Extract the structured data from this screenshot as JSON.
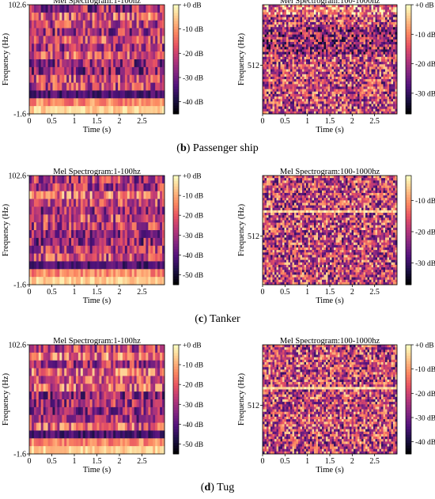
{
  "colormap": [
    "#000004",
    "#1d1147",
    "#51127c",
    "#832681",
    "#b73779",
    "#e75263",
    "#fc8961",
    "#fec488",
    "#fcfdbf"
  ],
  "groups": [
    {
      "caption_letter": "b",
      "caption_text": " Passenger ship"
    },
    {
      "caption_letter": "c",
      "caption_text": " Tanker"
    },
    {
      "caption_letter": "d",
      "caption_text": " Tug"
    }
  ],
  "chart_data": [
    {
      "type": "heatmap",
      "group": 0,
      "side": "left",
      "title": "Mel Spectrogram:1-100hz",
      "xlabel": "Time (s)",
      "ylabel": "Frequency (Hz)",
      "xlim": [
        0,
        3
      ],
      "ylim": [
        -1.6,
        102.6
      ],
      "xticks": [
        "0",
        "0.5",
        "1",
        "1.5",
        "2",
        "2.5"
      ],
      "yticks": [
        "102.6",
        "-1.6"
      ],
      "colorbar_ticks": [
        "+0 dB",
        "-10 dB",
        "-20 dB",
        "-30 dB",
        "-40 dB"
      ],
      "colorbar_range": [
        -45,
        0
      ]
    },
    {
      "type": "heatmap",
      "group": 0,
      "side": "right",
      "title": "Mel Spectrogram:100-1000hz",
      "xlabel": "Time (s)",
      "ylabel": "Frequency (Hz)",
      "xlim": [
        0,
        3
      ],
      "xticks": [
        "0",
        "0.5",
        "1",
        "1.5",
        "2",
        "2.5"
      ],
      "yticks": [
        "512"
      ],
      "colorbar_ticks": [
        "+0 dB",
        "-10 dB",
        "-20 dB",
        "-30 dB"
      ],
      "colorbar_range": [
        -37,
        0
      ]
    },
    {
      "type": "heatmap",
      "group": 1,
      "side": "left",
      "title": "Mel Spectrogram:1-100hz",
      "xlabel": "Time (s)",
      "ylabel": "Frequency (Hz)",
      "xlim": [
        0,
        3
      ],
      "ylim": [
        -1.6,
        102.6
      ],
      "xticks": [
        "0",
        "0.5",
        "1",
        "1.5",
        "2",
        "2.5"
      ],
      "yticks": [
        "102.6",
        "-1.6"
      ],
      "colorbar_ticks": [
        "+0 dB",
        "-10 dB",
        "-20 dB",
        "-30 dB",
        "-40 dB",
        "-50 dB"
      ],
      "colorbar_range": [
        -55,
        0
      ]
    },
    {
      "type": "heatmap",
      "group": 1,
      "side": "right",
      "title": "Mel Spectrogram:100-1000hz",
      "xlabel": "Time (s)",
      "ylabel": "Frequency (Hz)",
      "xlim": [
        0,
        3
      ],
      "xticks": [
        "0",
        "0.5",
        "1",
        "1.5",
        "2",
        "2.5"
      ],
      "yticks": [
        "512"
      ],
      "colorbar_ticks": [
        "-10 dB",
        "-20 dB",
        "-30 dB"
      ],
      "colorbar_range": [
        -37,
        -2
      ]
    },
    {
      "type": "heatmap",
      "group": 2,
      "side": "left",
      "title": "Mel Spectrogram:1-100hz",
      "xlabel": "Time (s)",
      "ylabel": "Frequency (Hz)",
      "xlim": [
        0,
        3
      ],
      "ylim": [
        -1.6,
        102.6
      ],
      "xticks": [
        "0",
        "0.5",
        "1",
        "1.5",
        "2",
        "2.5"
      ],
      "yticks": [
        "102.6",
        "-1.6"
      ],
      "colorbar_ticks": [
        "+0 dB",
        "-10 dB",
        "-20 dB",
        "-30 dB",
        "-40 dB",
        "-50 dB"
      ],
      "colorbar_range": [
        -55,
        0
      ]
    },
    {
      "type": "heatmap",
      "group": 2,
      "side": "right",
      "title": "Mel Spectrogram:100-1000hz",
      "xlabel": "Time (s)",
      "ylabel": "Frequency (Hz)",
      "xlim": [
        0,
        3
      ],
      "xticks": [
        "0",
        "0.5",
        "1",
        "1.5",
        "2",
        "2.5"
      ],
      "yticks": [
        "512"
      ],
      "colorbar_ticks": [
        "+0 dB",
        "-10 dB",
        "-20 dB",
        "-30 dB",
        "-40 dB"
      ],
      "colorbar_range": [
        -45,
        0
      ]
    }
  ]
}
